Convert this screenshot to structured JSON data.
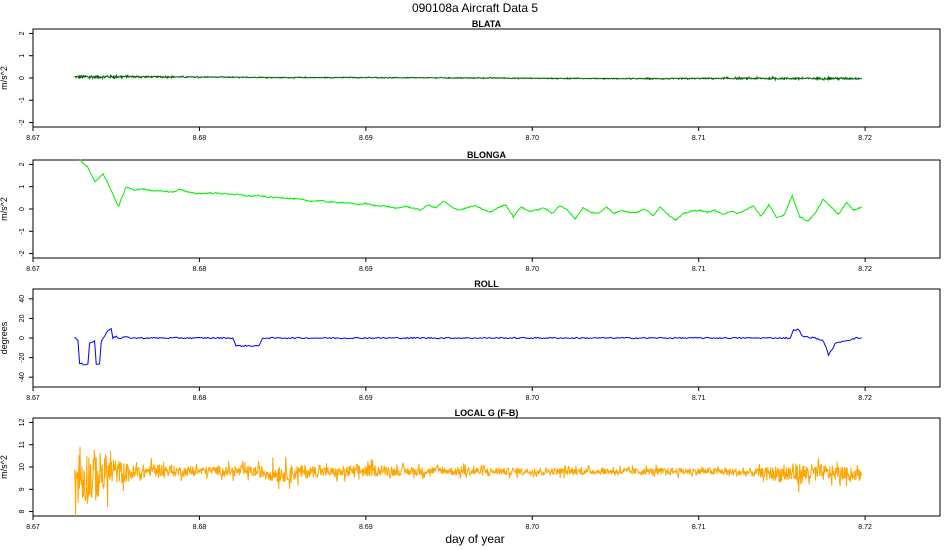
{
  "title": "090108a   Aircraft Data 5",
  "xlabel": "day of year",
  "chart_data": [
    {
      "type": "line",
      "title": "BLATA",
      "ylabel": "m/s^2",
      "xlim": [
        8.67,
        8.7245
      ],
      "ylim": [
        -2.2,
        2.2
      ],
      "xticks": [
        8.67,
        8.68,
        8.69,
        8.7,
        8.71,
        8.72
      ],
      "xtick_labels": [
        "8.67",
        "8.68",
        "8.69",
        "8.70",
        "8.71",
        "8.72"
      ],
      "yticks": [
        -2,
        -1,
        0,
        1,
        2
      ],
      "ytick_labels": [
        "-2",
        "-1",
        "0",
        "1",
        "2"
      ],
      "color": "#006400",
      "x_start": 8.6725,
      "x_end": 8.7198,
      "series": [
        {
          "values": [
            0.05,
            0.05,
            0.06,
            0.06,
            0.05,
            0.05,
            0.04,
            0.04,
            0.03,
            0.03,
            0.02,
            0.02,
            0.02,
            0.02,
            0.02,
            0.02,
            0.01,
            0.01,
            0.01,
            0.0,
            0.0,
            0.0,
            -0.01,
            -0.01,
            -0.02,
            -0.02,
            -0.02,
            -0.03,
            -0.03,
            -0.03,
            -0.03,
            -0.02,
            -0.02,
            -0.02,
            -0.02,
            -0.02,
            -0.02,
            -0.02,
            -0.02,
            -0.02
          ],
          "noise": [
            0.06,
            0.09,
            0.07,
            0.05,
            0.04,
            0.03,
            0.03,
            0.02,
            0.02,
            0.02,
            0.02,
            0.02,
            0.02,
            0.02,
            0.02,
            0.02,
            0.02,
            0.02,
            0.02,
            0.02,
            0.02,
            0.02,
            0.02,
            0.02,
            0.02,
            0.02,
            0.02,
            0.02,
            0.02,
            0.03,
            0.03,
            0.03,
            0.03,
            0.04,
            0.04,
            0.05,
            0.05,
            0.05,
            0.05,
            0.05
          ]
        }
      ]
    },
    {
      "type": "line",
      "title": "BLONGA",
      "ylabel": "m/s^2",
      "xlim": [
        8.67,
        8.7245
      ],
      "ylim": [
        -2.2,
        2.2
      ],
      "xticks": [
        8.67,
        8.68,
        8.69,
        8.7,
        8.71,
        8.72
      ],
      "xtick_labels": [
        "8.67",
        "8.68",
        "8.69",
        "8.70",
        "8.71",
        "8.72"
      ],
      "yticks": [
        -2,
        -1,
        0,
        1,
        2
      ],
      "ytick_labels": [
        "-2",
        "-1",
        "0",
        "1",
        "2"
      ],
      "color": "#00ee00",
      "x_start": 8.6728,
      "x_end": 8.7198,
      "series": [
        {
          "values": [
            2.2,
            1.9,
            1.2,
            1.6,
            0.9,
            0.1,
            1.0,
            0.85,
            0.9,
            0.85,
            0.8,
            0.8,
            0.75,
            0.9,
            0.75,
            0.7,
            0.7,
            0.72,
            0.7,
            0.68,
            0.66,
            0.62,
            0.58,
            0.6,
            0.55,
            0.52,
            0.52,
            0.48,
            0.45,
            0.4,
            0.35,
            0.38,
            0.32,
            0.3,
            0.3,
            0.25,
            0.2,
            0.25,
            0.15,
            0.15,
            0.1,
            0.02,
            0.12,
            0.05,
            -0.05,
            0.18,
            0.05,
            0.35,
            0.1,
            -0.05,
            0.05,
            0.15,
            0.0,
            -0.15,
            0.05,
            0.2,
            -0.35,
            0.1,
            -0.1,
            -0.05,
            0.05,
            -0.2,
            0.15,
            -0.05,
            -0.45,
            0.05,
            -0.15,
            -0.2,
            0.1,
            -0.2,
            -0.05,
            -0.15,
            -0.15,
            0.0,
            -0.3,
            0.1,
            -0.25,
            -0.5,
            -0.2,
            -0.1,
            -0.05,
            -0.15,
            -0.05,
            -0.25,
            -0.1,
            -0.2,
            -0.05,
            0.15,
            -0.35,
            0.2,
            -0.4,
            -0.25,
            0.6,
            -0.35,
            -0.55,
            -0.2,
            0.45,
            0.1,
            -0.25,
            0.3,
            -0.05,
            0.1
          ]
        }
      ]
    },
    {
      "type": "line",
      "title": "ROLL",
      "ylabel": "degrees",
      "xlim": [
        8.67,
        8.7245
      ],
      "ylim": [
        -50,
        50
      ],
      "xticks": [
        8.67,
        8.68,
        8.69,
        8.7,
        8.71,
        8.72
      ],
      "xtick_labels": [
        "8.67",
        "8.68",
        "8.69",
        "8.70",
        "8.71",
        "8.72"
      ],
      "yticks": [
        -40,
        -20,
        0,
        20,
        40
      ],
      "ytick_labels": [
        "-40",
        "-20",
        "0",
        "20",
        "40"
      ],
      "color": "#0000ff",
      "x_start": 8.6725,
      "x_end": 8.7198,
      "series": [
        {
          "points": [
            [
              8.6725,
              1
            ],
            [
              8.6727,
              -3
            ],
            [
              8.6728,
              -26
            ],
            [
              8.6731,
              -27
            ],
            [
              8.6733,
              -26
            ],
            [
              8.6734,
              -5
            ],
            [
              8.6736,
              -4
            ],
            [
              8.6737,
              -3
            ],
            [
              8.6738,
              -27
            ],
            [
              8.674,
              -26
            ],
            [
              8.6741,
              -4
            ],
            [
              8.6743,
              2
            ],
            [
              8.6745,
              8
            ],
            [
              8.6747,
              10
            ],
            [
              8.6748,
              0
            ],
            [
              8.675,
              2
            ],
            [
              8.6752,
              -1
            ],
            [
              8.6755,
              1
            ],
            [
              8.676,
              0
            ],
            [
              8.68,
              0
            ],
            [
              8.682,
              0
            ],
            [
              8.6822,
              -8
            ],
            [
              8.6836,
              -8
            ],
            [
              8.6838,
              0
            ],
            [
              8.69,
              0
            ],
            [
              8.7,
              0
            ],
            [
              8.71,
              0
            ],
            [
              8.7155,
              0
            ],
            [
              8.7157,
              8
            ],
            [
              8.716,
              9
            ],
            [
              8.7162,
              2
            ],
            [
              8.7165,
              1
            ],
            [
              8.717,
              0
            ],
            [
              8.7175,
              -3
            ],
            [
              8.7178,
              -17
            ],
            [
              8.718,
              -12
            ],
            [
              8.7182,
              -6
            ],
            [
              8.7185,
              -4
            ],
            [
              8.719,
              -2
            ],
            [
              8.7195,
              0
            ],
            [
              8.7198,
              0
            ]
          ]
        }
      ]
    },
    {
      "type": "line",
      "title": "LOCAL G (F-B)",
      "ylabel": "m/s^2",
      "xlim": [
        8.67,
        8.7245
      ],
      "ylim": [
        7.8,
        12.2
      ],
      "xticks": [
        8.67,
        8.68,
        8.69,
        8.7,
        8.71,
        8.72
      ],
      "xtick_labels": [
        "8.67",
        "8.68",
        "8.69",
        "8.70",
        "8.71",
        "8.72"
      ],
      "yticks": [
        8,
        9,
        10,
        11,
        12
      ],
      "ytick_labels": [
        "8",
        "9",
        "10",
        "11",
        "12"
      ],
      "color": "#ffa500",
      "x_start": 8.6725,
      "x_end": 8.7198,
      "series": [
        {
          "values": [
            9.5,
            9.6,
            9.8,
            9.7,
            9.9,
            9.8,
            9.8,
            9.85,
            9.8,
            9.8,
            9.7,
            9.75,
            9.8,
            9.75,
            9.8,
            9.85,
            9.8,
            9.8,
            9.85,
            9.8,
            9.8,
            9.8,
            9.8,
            9.8,
            9.8,
            9.8,
            9.8,
            9.8,
            9.8,
            9.8,
            9.8,
            9.8,
            9.8,
            9.75,
            9.75,
            9.7,
            9.7,
            9.75,
            9.7,
            9.65
          ],
          "noise": [
            1.6,
            1.5,
            0.7,
            0.45,
            0.35,
            0.3,
            0.25,
            0.25,
            0.3,
            0.3,
            0.5,
            0.45,
            0.3,
            0.3,
            0.4,
            0.3,
            0.25,
            0.25,
            0.2,
            0.25,
            0.25,
            0.2,
            0.2,
            0.2,
            0.2,
            0.2,
            0.15,
            0.2,
            0.2,
            0.2,
            0.2,
            0.2,
            0.2,
            0.25,
            0.25,
            0.5,
            0.6,
            0.45,
            0.4,
            0.3
          ]
        }
      ]
    }
  ]
}
